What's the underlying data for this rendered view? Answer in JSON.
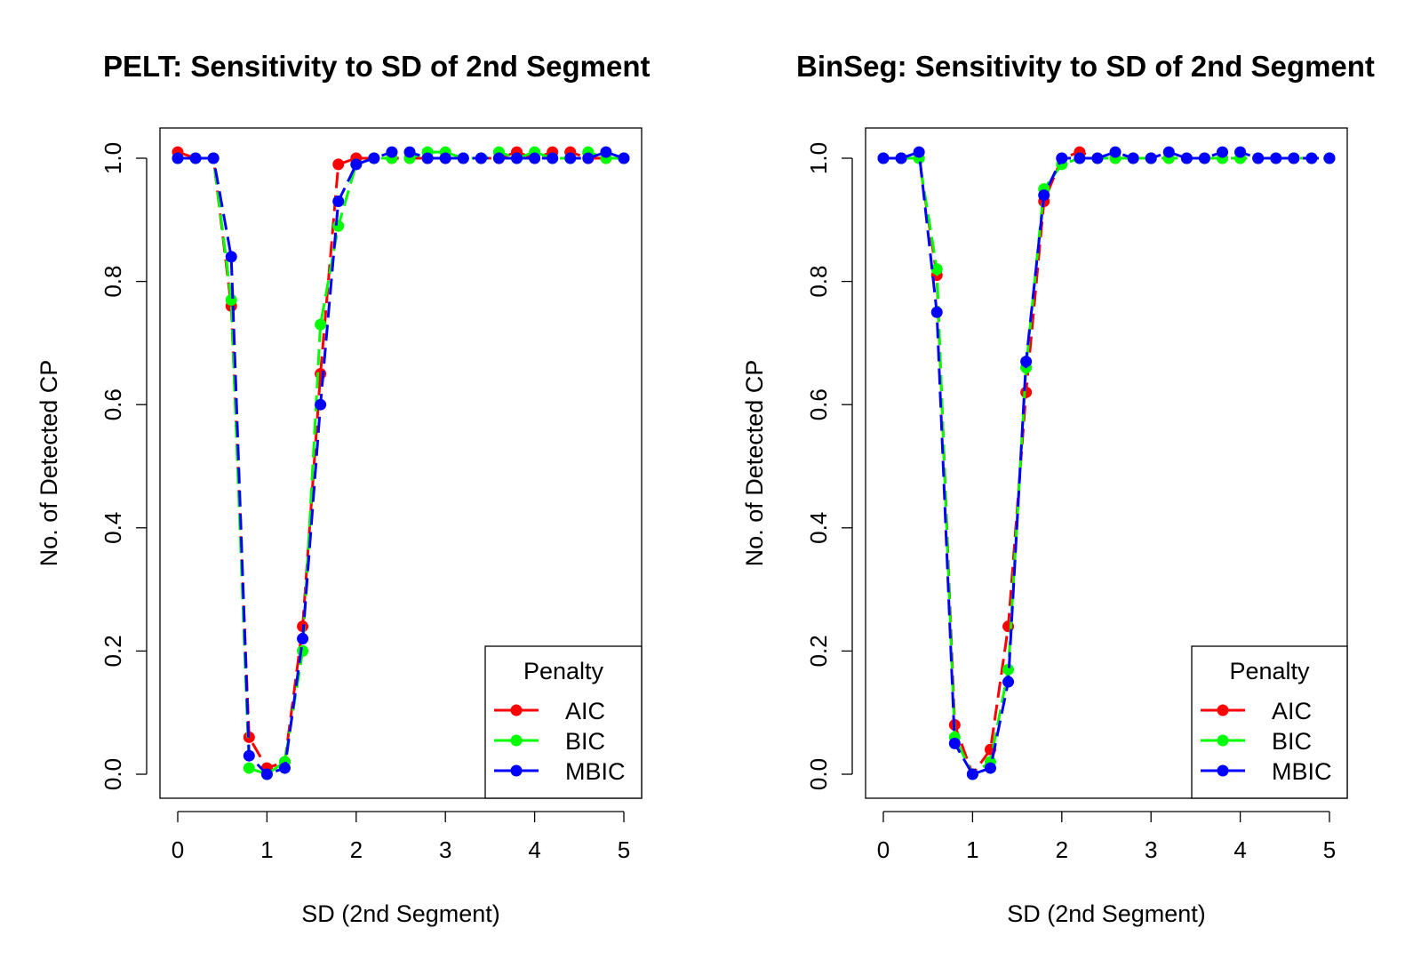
{
  "chart_data": [
    {
      "type": "line",
      "title": "PELT: Sensitivity to SD of 2nd Segment",
      "xlabel": "SD (2nd Segment)",
      "ylabel": "No. of Detected CP",
      "xlim": [
        0,
        5
      ],
      "ylim": [
        0,
        1
      ],
      "x_ticks": [
        "0",
        "1",
        "2",
        "3",
        "4",
        "5"
      ],
      "y_ticks": [
        "0.0",
        "0.2",
        "0.4",
        "0.6",
        "0.8",
        "1.0"
      ],
      "legend": {
        "title": "Penalty",
        "position": "bottom-right"
      },
      "x": [
        0,
        0.2,
        0.4,
        0.6,
        0.8,
        1.0,
        1.2,
        1.4,
        1.6,
        1.8,
        2.0,
        2.2,
        2.4,
        2.6,
        2.8,
        3.0,
        3.2,
        3.4,
        3.6,
        3.8,
        4.0,
        4.2,
        4.4,
        4.6,
        4.8,
        5.0
      ],
      "series": [
        {
          "name": "AIC",
          "color": "#ff0000",
          "values": [
            1.01,
            1.0,
            1.0,
            0.76,
            0.06,
            0.01,
            0.02,
            0.24,
            0.65,
            0.99,
            1.0,
            1.0,
            1.0,
            1.0,
            1.0,
            1.0,
            1.0,
            1.0,
            1.0,
            1.01,
            1.0,
            1.01,
            1.01,
            1.0,
            1.0,
            1.0
          ]
        },
        {
          "name": "BIC",
          "color": "#00ff00",
          "values": [
            1.0,
            1.0,
            1.0,
            0.77,
            0.01,
            0.0,
            0.02,
            0.2,
            0.73,
            0.89,
            0.99,
            1.0,
            1.0,
            1.0,
            1.01,
            1.01,
            1.0,
            1.0,
            1.01,
            1.0,
            1.01,
            1.0,
            1.0,
            1.01,
            1.0,
            1.0
          ]
        },
        {
          "name": "MBIC",
          "color": "#0000ff",
          "values": [
            1.0,
            1.0,
            1.0,
            0.84,
            0.03,
            0.0,
            0.01,
            0.22,
            0.6,
            0.93,
            0.99,
            1.0,
            1.01,
            1.01,
            1.0,
            1.0,
            1.0,
            1.0,
            1.0,
            1.0,
            1.0,
            1.0,
            1.0,
            1.0,
            1.01,
            1.0
          ]
        }
      ]
    },
    {
      "type": "line",
      "title": "BinSeg: Sensitivity to SD of 2nd Segment",
      "xlabel": "SD (2nd Segment)",
      "ylabel": "No. of Detected CP",
      "xlim": [
        0,
        5
      ],
      "ylim": [
        0,
        1
      ],
      "x_ticks": [
        "0",
        "1",
        "2",
        "3",
        "4",
        "5"
      ],
      "y_ticks": [
        "0.0",
        "0.2",
        "0.4",
        "0.6",
        "0.8",
        "1.0"
      ],
      "legend": {
        "title": "Penalty",
        "position": "bottom-right"
      },
      "x": [
        0,
        0.2,
        0.4,
        0.6,
        0.8,
        1.0,
        1.2,
        1.4,
        1.6,
        1.8,
        2.0,
        2.2,
        2.4,
        2.6,
        2.8,
        3.0,
        3.2,
        3.4,
        3.6,
        3.8,
        4.0,
        4.2,
        4.4,
        4.6,
        4.8,
        5.0
      ],
      "series": [
        {
          "name": "AIC",
          "color": "#ff0000",
          "values": [
            1.0,
            1.0,
            1.0,
            0.81,
            0.08,
            0.0,
            0.04,
            0.24,
            0.62,
            0.93,
            1.0,
            1.01,
            1.0,
            1.0,
            1.0,
            1.0,
            1.0,
            1.0,
            1.0,
            1.0,
            1.0,
            1.0,
            1.0,
            1.0,
            1.0,
            1.0
          ]
        },
        {
          "name": "BIC",
          "color": "#00ff00",
          "values": [
            1.0,
            1.0,
            1.0,
            0.82,
            0.06,
            0.0,
            0.02,
            0.17,
            0.66,
            0.95,
            0.99,
            1.0,
            1.0,
            1.0,
            1.0,
            1.0,
            1.0,
            1.0,
            1.0,
            1.0,
            1.0,
            1.0,
            1.0,
            1.0,
            1.0,
            1.0
          ]
        },
        {
          "name": "MBIC",
          "color": "#0000ff",
          "values": [
            1.0,
            1.0,
            1.01,
            0.75,
            0.05,
            0.0,
            0.01,
            0.15,
            0.67,
            0.94,
            1.0,
            1.0,
            1.0,
            1.01,
            1.0,
            1.0,
            1.01,
            1.0,
            1.0,
            1.01,
            1.01,
            1.0,
            1.0,
            1.0,
            1.0,
            1.0
          ]
        }
      ]
    }
  ]
}
